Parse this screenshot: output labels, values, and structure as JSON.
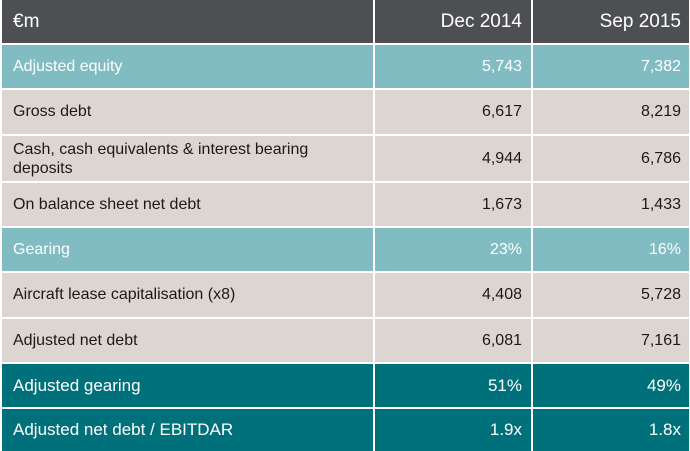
{
  "table": {
    "header": {
      "label": "€m",
      "col1": "Dec 2014",
      "col2": "Sep 2015"
    },
    "rows": [
      {
        "label": "Adjusted equity",
        "col1": "5,743",
        "col2": "7,382",
        "style": "teal"
      },
      {
        "label": "Gross debt",
        "col1": "6,617",
        "col2": "8,219",
        "style": "light"
      },
      {
        "label": "Cash, cash equivalents & interest bearing deposits",
        "col1": "4,944",
        "col2": "6,786",
        "style": "light"
      },
      {
        "label": "On balance sheet net debt",
        "col1": "1,673",
        "col2": "1,433",
        "style": "light"
      },
      {
        "label": "Gearing",
        "col1": "23%",
        "col2": "16%",
        "style": "teal"
      },
      {
        "label": "Aircraft lease capitalisation (x8)",
        "col1": "4,408",
        "col2": "5,728",
        "style": "light"
      },
      {
        "label": "Adjusted net debt",
        "col1": "6,081",
        "col2": "7,161",
        "style": "light"
      },
      {
        "label": "Adjusted gearing",
        "col1": "51%",
        "col2": "49%",
        "style": "dark"
      },
      {
        "label": "Adjusted net debt / EBITDAR",
        "col1": "1.9x",
        "col2": "1.8x",
        "style": "dark"
      }
    ]
  },
  "colors": {
    "header": "#4d4f53",
    "light": "#ddd6d0",
    "teal": "#82bcc3",
    "dark": "#00717a"
  }
}
